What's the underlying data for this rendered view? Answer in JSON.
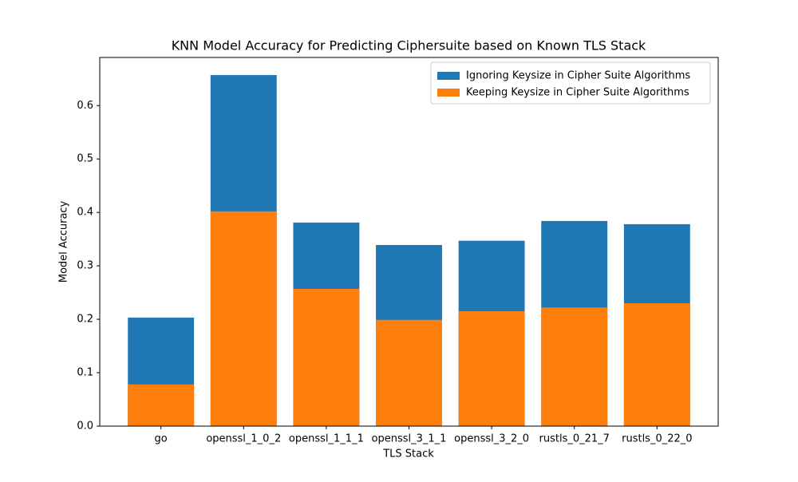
{
  "chart_data": {
    "type": "bar",
    "title": "KNN Model Accuracy for Predicting Ciphersuite based on Known TLS Stack",
    "x_label": "TLS Stack",
    "y_label": "Model Accuracy",
    "categories": [
      "go",
      "openssl_1_0_2",
      "openssl_1_1_1",
      "openssl_3_1_1",
      "openssl_3_2_0",
      "rustls_0_21_7",
      "rustls_0_22_0"
    ],
    "series": [
      {
        "name": "Ignoring Keysize in Cipher Suite Algorithms",
        "color": "#1f77b4",
        "values": [
          0.203,
          0.657,
          0.381,
          0.339,
          0.347,
          0.384,
          0.378
        ]
      },
      {
        "name": "Keeping Keysize in Cipher Suite Algorithms",
        "color": "#ff7f0e",
        "values": [
          0.078,
          0.402,
          0.257,
          0.199,
          0.215,
          0.222,
          0.23
        ]
      }
    ],
    "ylim": [
      0,
      0.69
    ],
    "yticks": [
      {
        "value": 0,
        "label": "0.0"
      },
      0.1,
      0.2,
      0.3,
      0.4,
      0.5,
      0.6
    ],
    "legend": "upper right"
  }
}
